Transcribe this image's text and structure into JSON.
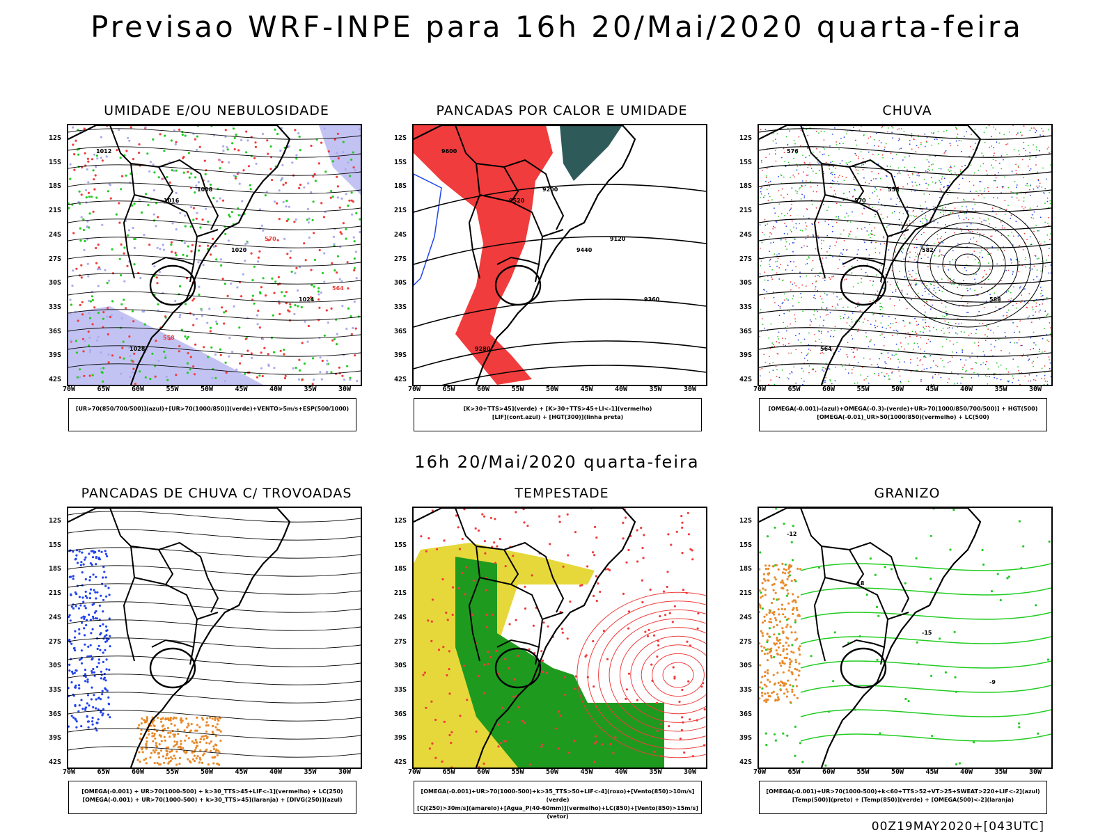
{
  "header": {
    "title": "Previsao WRF-INPE  para 16h 20/Mai/2020 quarta-feira"
  },
  "middle": {
    "subtitle": "16h 20/Mai/2020 quarta-feira"
  },
  "footer": {
    "run": "00Z19MAY2020+[043UTC]"
  },
  "axes": {
    "lat_labels": [
      "12S",
      "15S",
      "18S",
      "21S",
      "24S",
      "27S",
      "30S",
      "33S",
      "36S",
      "39S",
      "42S"
    ],
    "lon_labels": [
      "70W",
      "65W",
      "60W",
      "55W",
      "50W",
      "45W",
      "40W",
      "35W",
      "30W"
    ]
  },
  "colors": {
    "red": "#f03c3c",
    "green": "#22cc22",
    "blue": "#2244ee",
    "lavender": "#aaaaee",
    "yellow": "#e6d83a",
    "darkteal": "#2e5a5a",
    "orange": "#e88a2a"
  },
  "panels": [
    {
      "title": "UMIDADE E/OU NEBULOSIDADE",
      "legend": [
        "[UR>70(850/700/500)](azul)+[UR>70(1000/850)](verde)+VENTO>5m/s+ESP(500/1000)"
      ],
      "contour_labels": [
        "1012",
        "1016",
        "1020",
        "1024",
        "1028",
        "1008",
        "570",
        "564",
        "558"
      ]
    },
    {
      "title": "PANCADAS POR CALOR E UMIDADE",
      "legend": [
        "[K>30+TTS>45](verde) + [K>30+TTS>45+LI<-1](vermelho)",
        "[LIF](cont.azul) + [HGT(300)](linha preta)"
      ],
      "contour_labels": [
        "9600",
        "9520",
        "9440",
        "9360",
        "9280",
        "9200",
        "9120"
      ]
    },
    {
      "title": "CHUVA",
      "legend": [
        "[OMEGA(-0.001)-(azul)+OMEGA(-0.3)-(verde)+UR>70(1000/850/700/500)] + HGT(500)",
        "[OMEGA(-0.01)_UR>50(1000/850)(vermelho) + LC(500)"
      ],
      "contour_labels": [
        "576",
        "570",
        "582",
        "588",
        "564",
        "558"
      ]
    },
    {
      "title": "PANCADAS DE CHUVA C/ TROVOADAS",
      "legend": [
        "[OMEGA(-0.001) + UR>70(1000-500) + k>30_TTS>45+LIF<-1](vermelho) + LC(250)",
        "[OMEGA(-0.001) + UR>70(1000-500) + k>30_TTS>45](laranja) + [DIVG(250)](azul)"
      ],
      "contour_labels": []
    },
    {
      "title": "TEMPESTADE",
      "legend": [
        "[OMEGA(-0.001)+UR>70(1000-500)+k>35_TTS>50+LIF<-4](roxo)+[Vento(850)>10m/s](verde)",
        "[CJ(250)>30m/s](amarelo)+[Agua_P(40-60mm)](vermelho)+LC(850)+[Vento(850)>15m/s](vetor)"
      ],
      "contour_labels": []
    },
    {
      "title": "GRANIZO",
      "legend": [
        "[OMEGA(-0.001)+UR>70(1000-500)+k<60+TTS>52+VT>25+SWEAT>220+LIF<-2](azul)",
        "[Temp(500)](preto) + [Temp(850)](verde) + [OMEGA(500)<-2](laranja)"
      ],
      "contour_labels": [
        "-12",
        "-18",
        "-15",
        "-9"
      ]
    }
  ]
}
